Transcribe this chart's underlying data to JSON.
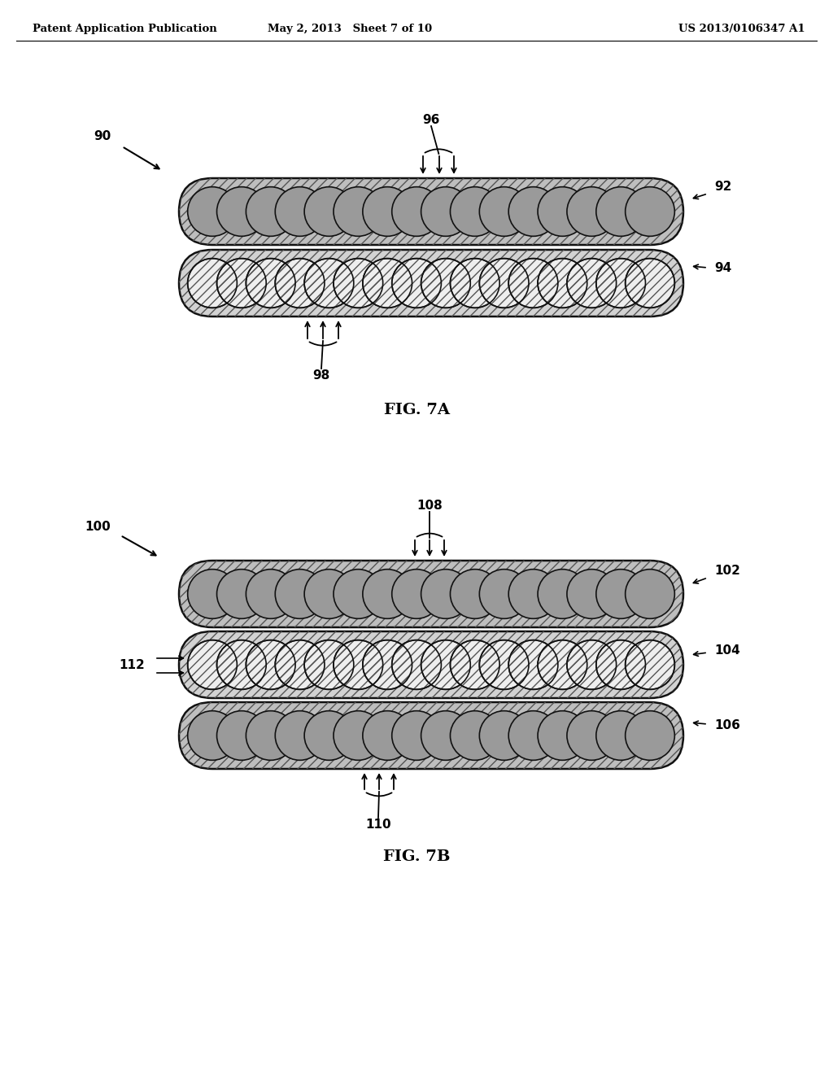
{
  "header_left": "Patent Application Publication",
  "header_mid": "May 2, 2013   Sheet 7 of 10",
  "header_right": "US 2013/0106347 A1",
  "fig7a_label": "FIG. 7A",
  "fig7b_label": "FIG. 7B",
  "bg_color": "#ffffff",
  "tube_hatch_bg_dark": "#b8b8b8",
  "tube_hatch_bg_light": "#d0d0d0",
  "wire_dark_fill": "#a0a0a0",
  "wire_light_fill": "#f0f0f0",
  "wire_edge": "#222222",
  "tube_edge": "#111111"
}
